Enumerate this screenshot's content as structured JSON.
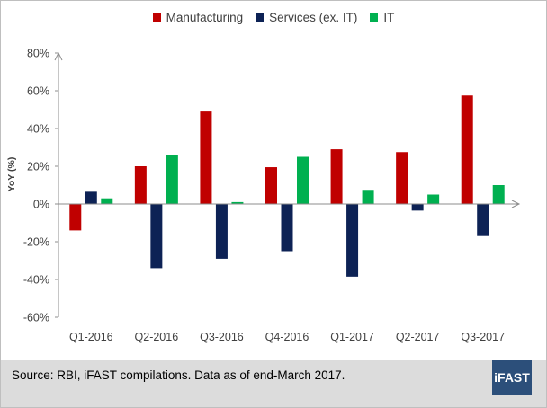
{
  "chart_data": {
    "type": "bar",
    "categories": [
      "Q1-2016",
      "Q2-2016",
      "Q3-2016",
      "Q4-2016",
      "Q1-2017",
      "Q2-2017",
      "Q3-2017"
    ],
    "series": [
      {
        "name": "Manufacturing",
        "color": "#c00000",
        "values": [
          -14,
          20,
          49,
          19.5,
          29,
          27.5,
          57.5
        ]
      },
      {
        "name": "Services (ex. IT)",
        "color": "#0d2255",
        "values": [
          6.5,
          -34,
          -29,
          -25,
          -38.5,
          -3.5,
          -17
        ]
      },
      {
        "name": "IT",
        "color": "#00b050",
        "values": [
          3,
          26,
          1,
          25,
          7.5,
          5,
          10
        ]
      }
    ],
    "ylabel": "YoY (%)",
    "ylim": [
      -60,
      80
    ],
    "yticks": [
      -60,
      -40,
      -20,
      0,
      20,
      40,
      60,
      80
    ],
    "ytick_labels": [
      "-60%",
      "-40%",
      "-20%",
      "0%",
      "20%",
      "40%",
      "60%",
      "80%"
    ],
    "legend_position": "top-center",
    "grid": false
  },
  "footer": {
    "source": "Source: RBI, iFAST compilations. Data as of end-March 2017.",
    "logo": "iFAST"
  },
  "colors": {
    "footer_background": "#dcdcdc",
    "logo_background": "#2c4f7a",
    "axis": "#8c8c8c"
  }
}
